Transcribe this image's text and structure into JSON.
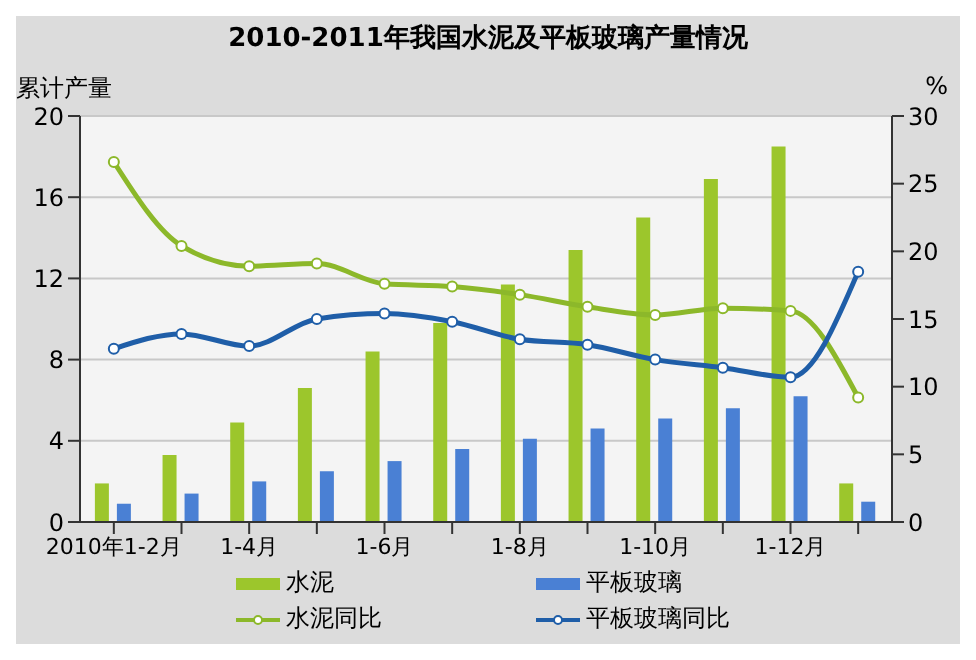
{
  "chart_data": {
    "type": "bar",
    "title": "2010-2011年我国水泥及平板玻璃产量情况",
    "ylabel": "累计产量",
    "y2label": "%",
    "categories": [
      "2010年1-2月",
      null,
      "1-4月",
      null,
      "1-6月",
      null,
      "1-8月",
      null,
      "1-10月",
      null,
      "1-12月",
      null
    ],
    "series": [
      {
        "name": "水泥",
        "color": "#9cc62c",
        "values": [
          1.9,
          3.3,
          4.9,
          6.6,
          8.4,
          9.8,
          11.7,
          13.4,
          15.0,
          16.9,
          18.5,
          1.9
        ]
      },
      {
        "name": "平板玻璃",
        "color": "#4a80d4",
        "values": [
          0.9,
          1.4,
          2.0,
          2.5,
          3.0,
          3.6,
          4.1,
          4.6,
          5.1,
          5.6,
          6.2,
          1.0
        ]
      },
      {
        "name": "水泥同比",
        "type": "line",
        "axis": "y2",
        "color": "#8cb82a",
        "values": [
          26.6,
          20.4,
          18.9,
          19.1,
          17.6,
          17.4,
          16.8,
          15.9,
          15.3,
          15.8,
          15.6,
          9.2
        ]
      },
      {
        "name": "平板玻璃同比",
        "type": "line",
        "axis": "y2",
        "color": "#1f5ea8",
        "values": [
          12.8,
          13.9,
          13.0,
          15.0,
          15.4,
          14.8,
          13.5,
          13.1,
          12.0,
          11.4,
          10.7,
          18.5
        ]
      }
    ],
    "ylim": [
      0,
      20
    ],
    "yticks": [
      0,
      4,
      8,
      12,
      16,
      20
    ],
    "y2lim": [
      0,
      30
    ],
    "y2ticks": [
      0,
      5,
      10,
      15,
      20,
      25,
      30
    ],
    "grid": "y",
    "legend": "bottom",
    "marker": "circle",
    "line_style": "solid"
  }
}
